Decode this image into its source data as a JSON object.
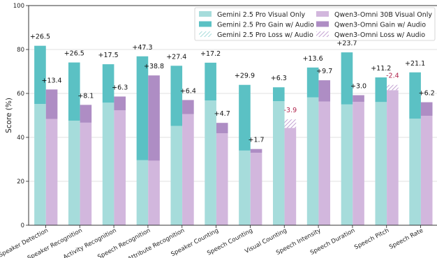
{
  "chart_data": {
    "type": "bar",
    "ylabel": "Score (%)",
    "xlabel": "",
    "ylim": [
      0,
      100
    ],
    "yticks": [
      0,
      20,
      40,
      60,
      80,
      100
    ],
    "grid": "y",
    "legend_position": "top-right",
    "categories": [
      "Speaker Detection",
      "Speaker Recognition",
      "Activity Recognition",
      "Speech Recognition",
      "Attribute Recognition",
      "Speaker Counting",
      "Speech Counting",
      "Visual Counting",
      "Speech Intensity",
      "Speech Duration",
      "Speech Pitch",
      "Speech Rate"
    ],
    "series": [
      {
        "name": "Gemini 2.5 Pro Visual Only",
        "values": [
          55.2,
          47.6,
          55.8,
          29.6,
          45.2,
          56.8,
          34.0,
          56.5,
          58.2,
          55.0,
          56.1,
          48.5
        ],
        "color": "#a6dcdb"
      },
      {
        "name": "Gemini 2.5 Pro Gain w/ Audio",
        "values": [
          26.5,
          26.5,
          17.5,
          47.3,
          27.4,
          17.2,
          29.9,
          6.3,
          13.6,
          23.7,
          11.2,
          21.1
        ],
        "color": "#5bc1c4"
      },
      {
        "name": "Gemini 2.5 Pro Loss w/ Audio",
        "values": [
          0,
          0,
          0,
          0,
          0,
          0,
          0,
          0,
          0,
          0,
          0,
          0
        ],
        "color": "#a6dcdb"
      },
      {
        "name": "Qwen3-Omni 30B Visual Only",
        "values": [
          48.4,
          46.7,
          52.3,
          29.4,
          50.6,
          41.9,
          33.0,
          44.3,
          56.3,
          56.2,
          61.5,
          49.8
        ],
        "color": "#d2b7dd"
      },
      {
        "name": "Qwen3-Omni Gain w/ Audio",
        "values": [
          13.4,
          8.1,
          6.3,
          38.8,
          6.4,
          4.7,
          1.7,
          0,
          9.7,
          3.0,
          0,
          6.2
        ],
        "color": "#ae8dc4"
      },
      {
        "name": "Qwen3-Omni Loss w/ Audio",
        "values": [
          0,
          0,
          0,
          0,
          0,
          0,
          0,
          3.9,
          0,
          0,
          2.4,
          0
        ],
        "color": "#d2b7dd"
      }
    ],
    "annotations": {
      "gemini": [
        "+26.5",
        "+26.5",
        "+17.5",
        "+47.3",
        "+27.4",
        "+17.2",
        "+29.9",
        "+6.3",
        "+13.6",
        "+23.7",
        "+11.2",
        "+21.1"
      ],
      "qwen": [
        "+13.4",
        "+8.1",
        "+6.3",
        "+38.8",
        "+6.4",
        "+4.7",
        "+1.7",
        "-3.9",
        "+9.7",
        "+3.0",
        "-2.4",
        "+6.2"
      ]
    },
    "colors": {
      "positive_annotation": "#111111",
      "negative_annotation": "#b0224b",
      "axis": "#222222",
      "grid": "#d9d9d9"
    }
  }
}
